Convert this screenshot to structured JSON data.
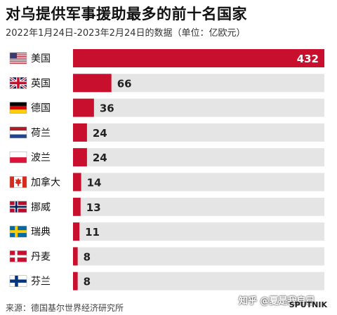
{
  "title": "对乌提供军事援助最多的前十名国家",
  "subtitle": "2022年1月24日-2023年2月24日的数据（单位：亿欧元）",
  "source": "来源：德国基尔世界经济研究所",
  "watermark": "知乎 @夏是我自己",
  "logo_text": "SPUTNIK",
  "colors": {
    "bar": "#c8102e",
    "track": "#e5e5e5",
    "value_inside": "#ffffff",
    "value_outside": "#222222"
  },
  "chart_data": {
    "type": "bar",
    "orientation": "horizontal",
    "categories": [
      "美国",
      "英国",
      "德国",
      "荷兰",
      "波兰",
      "加拿大",
      "挪威",
      "瑞典",
      "丹麦",
      "芬兰"
    ],
    "flags": [
      "us-flag-icon",
      "uk-flag-icon",
      "germany-flag-icon",
      "netherlands-flag-icon",
      "poland-flag-icon",
      "canada-flag-icon",
      "norway-flag-icon",
      "sweden-flag-icon",
      "denmark-flag-icon",
      "finland-flag-icon"
    ],
    "values": [
      432,
      66,
      36,
      24,
      24,
      14,
      13,
      11,
      8,
      8
    ],
    "data_labels": [
      "432",
      "66",
      "36",
      "24",
      "24",
      "14",
      "13",
      "11",
      "8",
      "8"
    ],
    "xlim": [
      0,
      432
    ],
    "grid": false,
    "legend": "none"
  }
}
